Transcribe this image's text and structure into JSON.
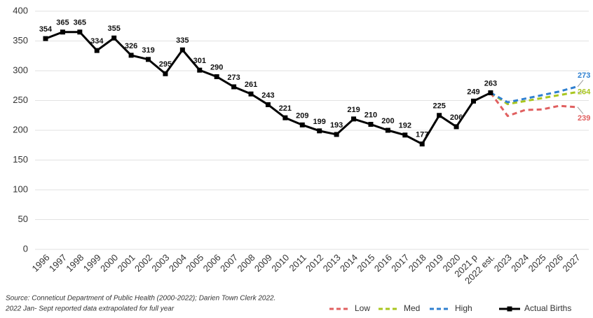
{
  "chart_data": {
    "type": "line",
    "categories": [
      "1996",
      "1997",
      "1998",
      "1999",
      "2000",
      "2001",
      "2002",
      "2003",
      "2004",
      "2005",
      "2006",
      "2007",
      "2008",
      "2009",
      "2010",
      "2011",
      "2012",
      "2013",
      "2014",
      "2015",
      "2016",
      "2017",
      "2018",
      "2019",
      "2020",
      "2021 p",
      "2022 est.",
      "2023",
      "2024",
      "2025",
      "2026",
      "2027"
    ],
    "series": [
      {
        "name": "Low",
        "color": "#e06060",
        "dashed": true,
        "values": [
          null,
          null,
          null,
          null,
          null,
          null,
          null,
          null,
          null,
          null,
          null,
          null,
          null,
          null,
          null,
          null,
          null,
          null,
          null,
          null,
          null,
          null,
          null,
          null,
          null,
          null,
          263,
          224,
          234,
          235,
          241,
          239
        ]
      },
      {
        "name": "Med",
        "color": "#a9c61f",
        "dashed": true,
        "values": [
          null,
          null,
          null,
          null,
          null,
          null,
          null,
          null,
          null,
          null,
          null,
          null,
          null,
          null,
          null,
          null,
          null,
          null,
          null,
          null,
          null,
          null,
          null,
          null,
          null,
          null,
          263,
          244,
          249,
          254,
          259,
          264
        ]
      },
      {
        "name": "High",
        "color": "#2f80d0",
        "dashed": true,
        "values": [
          null,
          null,
          null,
          null,
          null,
          null,
          null,
          null,
          null,
          null,
          null,
          null,
          null,
          null,
          null,
          null,
          null,
          null,
          null,
          null,
          null,
          null,
          null,
          null,
          null,
          null,
          263,
          247,
          253,
          259,
          265,
          273
        ]
      },
      {
        "name": "Actual Births",
        "color": "#000000",
        "dashed": false,
        "values": [
          354,
          365,
          365,
          334,
          355,
          326,
          319,
          295,
          335,
          301,
          290,
          273,
          261,
          243,
          221,
          209,
          199,
          193,
          219,
          210,
          200,
          192,
          177,
          225,
          206,
          249,
          263,
          null,
          null,
          null,
          null,
          null
        ]
      }
    ],
    "ylim": [
      0,
      400
    ],
    "yticks": [
      0,
      50,
      100,
      150,
      200,
      250,
      300,
      350,
      400
    ],
    "grid": true,
    "notes": [
      "Source: Conneticut Department of Public Health (2000-2022); Darien Town Clerk 2022.",
      "2022 Jan- Sept reported data extrapolated for full year"
    ]
  }
}
